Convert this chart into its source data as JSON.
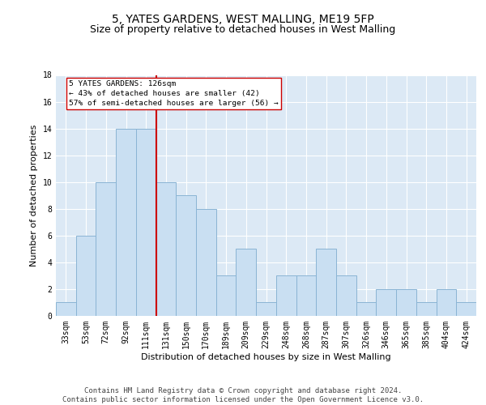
{
  "title1": "5, YATES GARDENS, WEST MALLING, ME19 5FP",
  "title2": "Size of property relative to detached houses in West Malling",
  "xlabel": "Distribution of detached houses by size in West Malling",
  "ylabel": "Number of detached properties",
  "categories": [
    "33sqm",
    "53sqm",
    "72sqm",
    "92sqm",
    "111sqm",
    "131sqm",
    "150sqm",
    "170sqm",
    "189sqm",
    "209sqm",
    "229sqm",
    "248sqm",
    "268sqm",
    "287sqm",
    "307sqm",
    "326sqm",
    "346sqm",
    "365sqm",
    "385sqm",
    "404sqm",
    "424sqm"
  ],
  "values": [
    1,
    6,
    10,
    14,
    14,
    10,
    9,
    8,
    3,
    5,
    1,
    3,
    3,
    5,
    3,
    1,
    2,
    2,
    1,
    2,
    1
  ],
  "bar_color": "#c9dff2",
  "bar_edge_color": "#8ab4d4",
  "vline_color": "#cc0000",
  "annotation_text": "5 YATES GARDENS: 126sqm\n← 43% of detached houses are smaller (42)\n57% of semi-detached houses are larger (56) →",
  "annotation_box_color": "#ffffff",
  "annotation_box_edge_color": "#cc0000",
  "ylim": [
    0,
    18
  ],
  "yticks": [
    0,
    2,
    4,
    6,
    8,
    10,
    12,
    14,
    16,
    18
  ],
  "background_color": "#dce9f5",
  "grid_color": "#ffffff",
  "footer": "Contains HM Land Registry data © Crown copyright and database right 2024.\nContains public sector information licensed under the Open Government Licence v3.0.",
  "title_fontsize": 10,
  "subtitle_fontsize": 9,
  "axis_label_fontsize": 8,
  "tick_fontsize": 7,
  "footer_fontsize": 6.5
}
